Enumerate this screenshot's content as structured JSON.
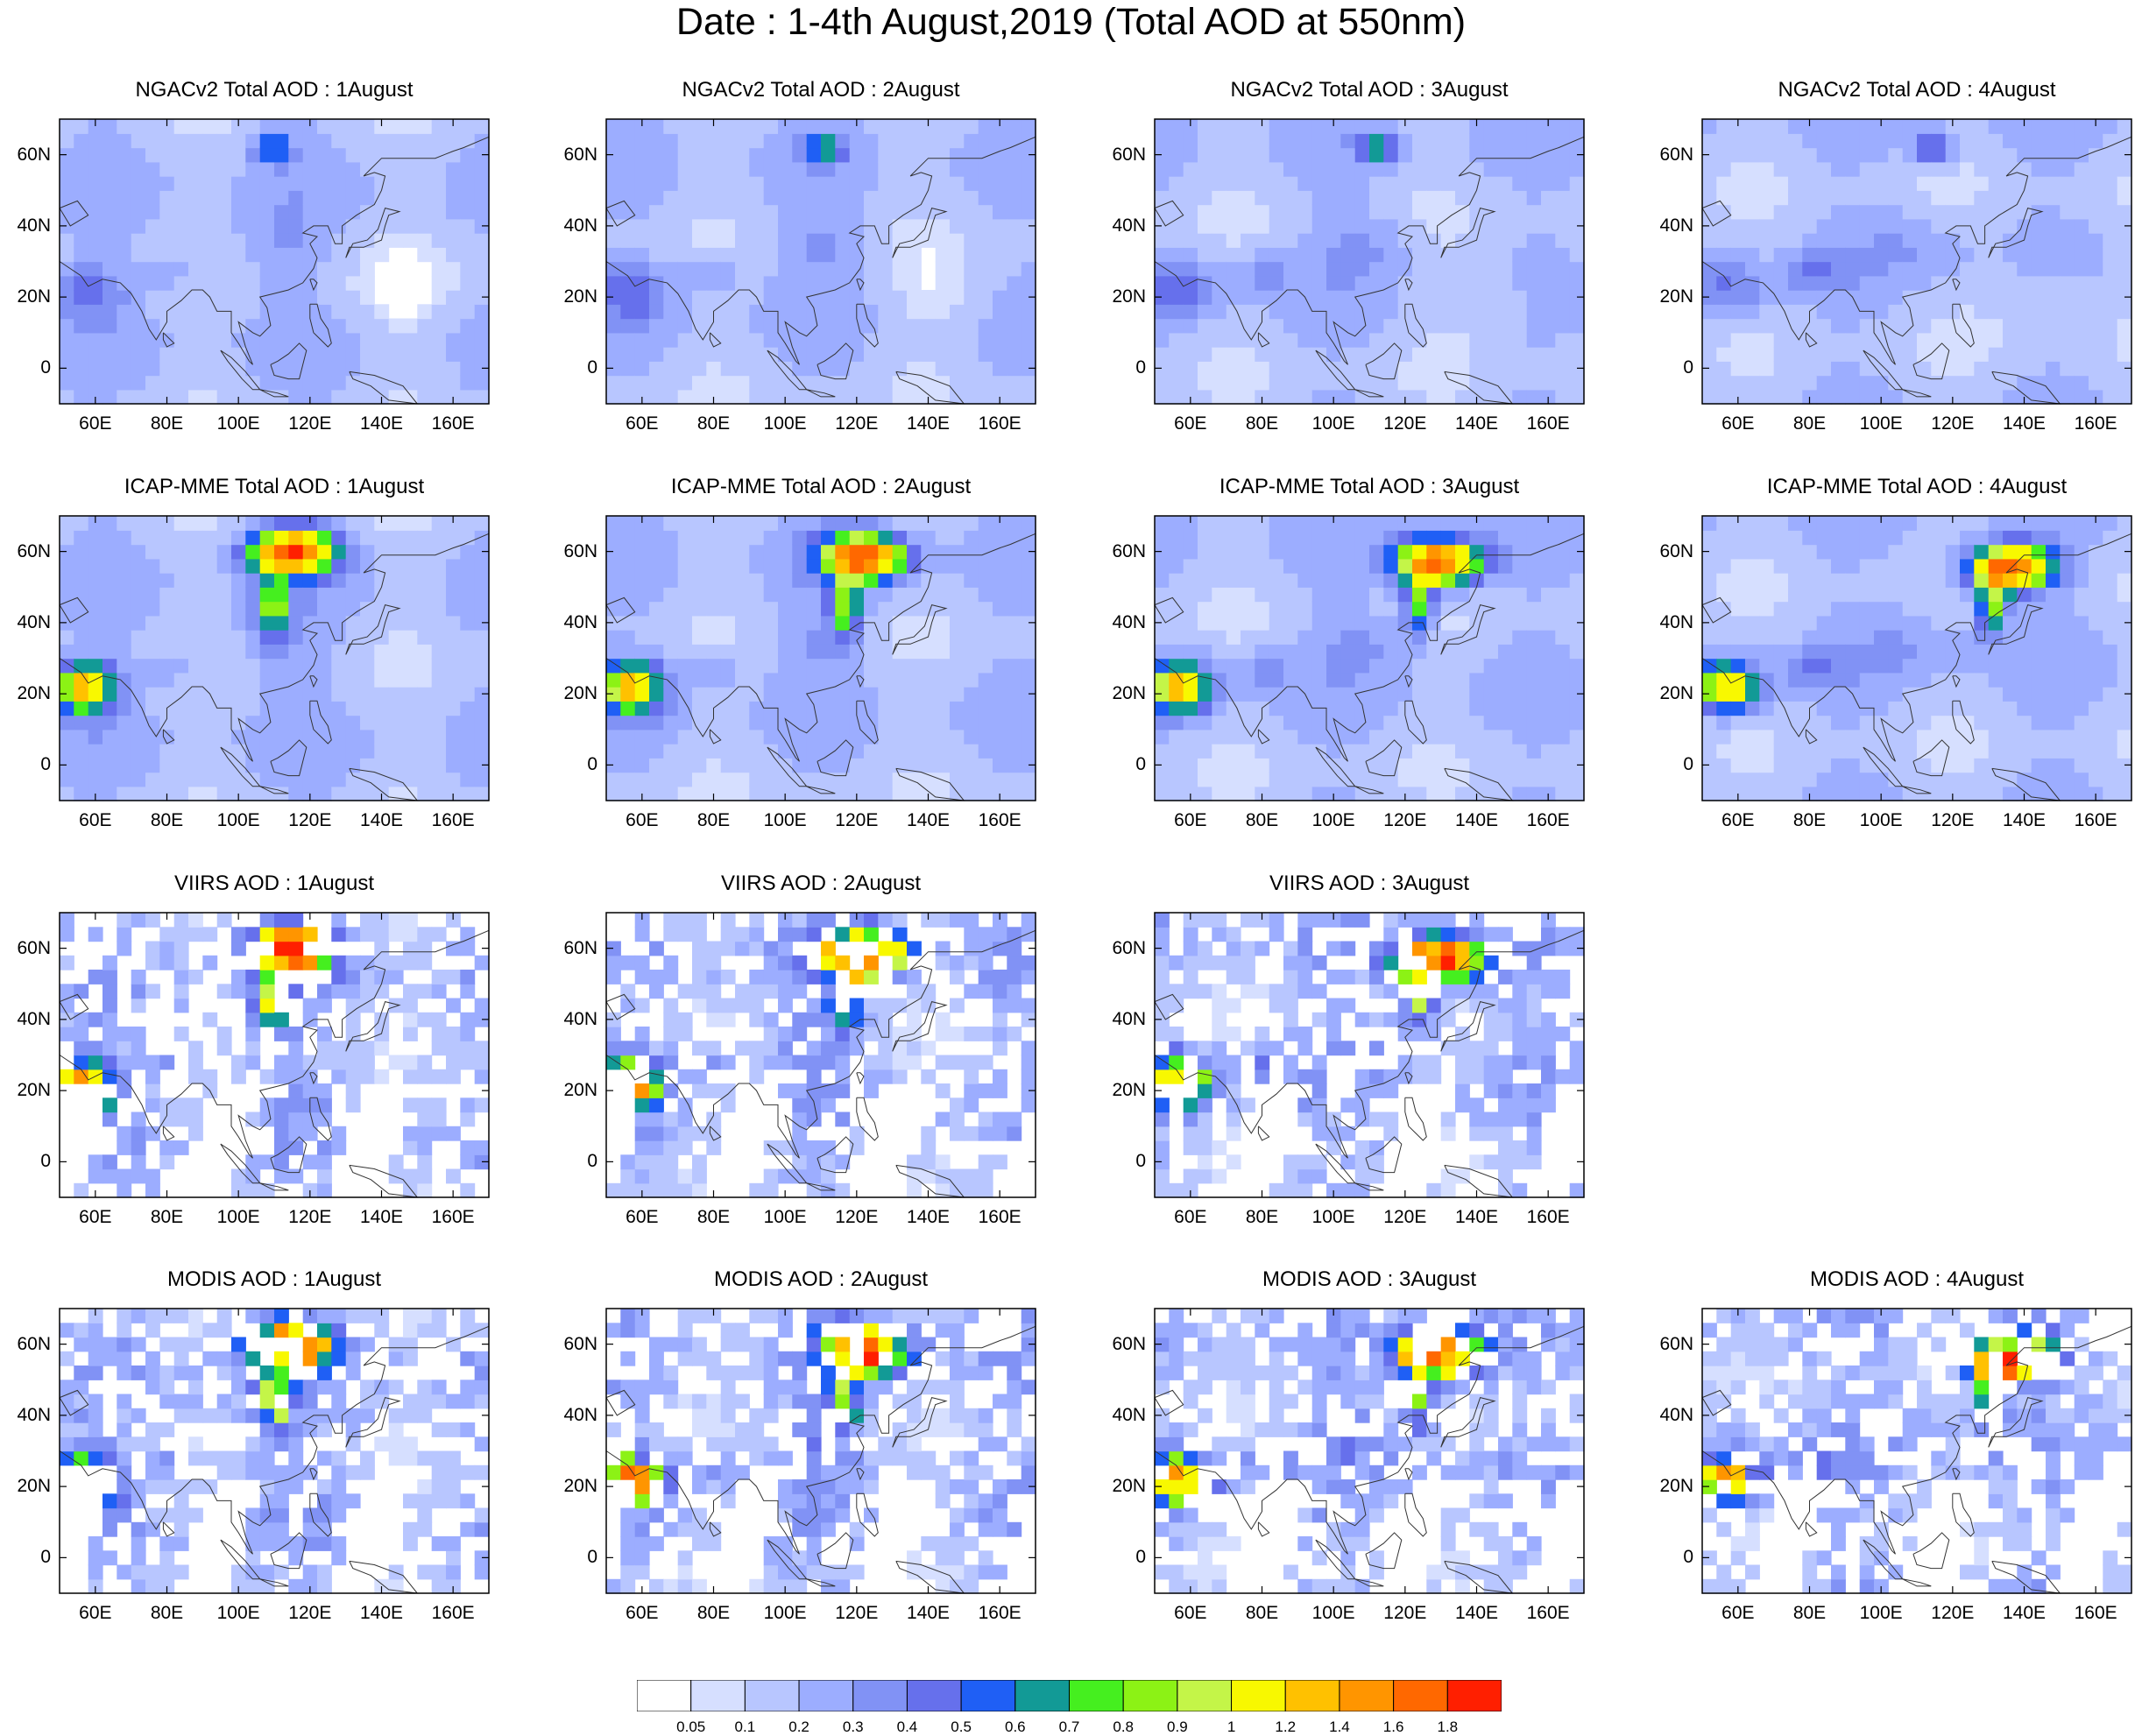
{
  "figure": {
    "title": "Date : 1-4th August,2019 (Total AOD at 550nm)"
  },
  "map": {
    "lon_range": [
      50,
      170
    ],
    "lat_range": [
      -10,
      70
    ],
    "lon_ticks": [
      "60E",
      "80E",
      "100E",
      "120E",
      "140E",
      "160E"
    ],
    "lat_ticks": [
      "60N",
      "40N",
      "20N",
      "0"
    ]
  },
  "panels": [
    {
      "title": "NGACv2 Total AOD : 1August",
      "model": "NGACv2",
      "day": 1
    },
    {
      "title": "NGACv2 Total AOD : 2August",
      "model": "NGACv2",
      "day": 2
    },
    {
      "title": "NGACv2 Total AOD : 3August",
      "model": "NGACv2",
      "day": 3
    },
    {
      "title": "NGACv2 Total AOD : 4August",
      "model": "NGACv2",
      "day": 4
    },
    {
      "title": "ICAP-MME Total AOD : 1August",
      "model": "ICAP-MME",
      "day": 1
    },
    {
      "title": "ICAP-MME Total AOD : 2August",
      "model": "ICAP-MME",
      "day": 2
    },
    {
      "title": "ICAP-MME Total AOD : 3August",
      "model": "ICAP-MME",
      "day": 3
    },
    {
      "title": "ICAP-MME Total AOD : 4August",
      "model": "ICAP-MME",
      "day": 4
    },
    {
      "title": "VIIRS AOD : 1August",
      "model": "VIIRS",
      "day": 1
    },
    {
      "title": "VIIRS AOD : 2August",
      "model": "VIIRS",
      "day": 2
    },
    {
      "title": "VIIRS AOD : 3August",
      "model": "VIIRS",
      "day": 3
    },
    {
      "title": "MODIS AOD : 1August",
      "model": "MODIS",
      "day": 1
    },
    {
      "title": "MODIS AOD : 2August",
      "model": "MODIS",
      "day": 2
    },
    {
      "title": "MODIS AOD : 3August",
      "model": "MODIS",
      "day": 3
    },
    {
      "title": "MODIS AOD : 4August",
      "model": "MODIS",
      "day": 4
    }
  ],
  "colorbar": {
    "labels": [
      "0.05",
      "0.1",
      "0.2",
      "0.3",
      "0.4",
      "0.5",
      "0.6",
      "0.7",
      "0.8",
      "0.9",
      "1",
      "1.2",
      "1.4",
      "1.6",
      "1.8"
    ],
    "colors": [
      "#ffffff",
      "#d6dfff",
      "#b8c6ff",
      "#9cadff",
      "#8192f5",
      "#6670ec",
      "#1f5ff5",
      "#129a96",
      "#45ef1f",
      "#8cf215",
      "#c4f548",
      "#f8f800",
      "#ffc100",
      "#ff9500",
      "#ff6800",
      "#ff1f00"
    ]
  }
}
